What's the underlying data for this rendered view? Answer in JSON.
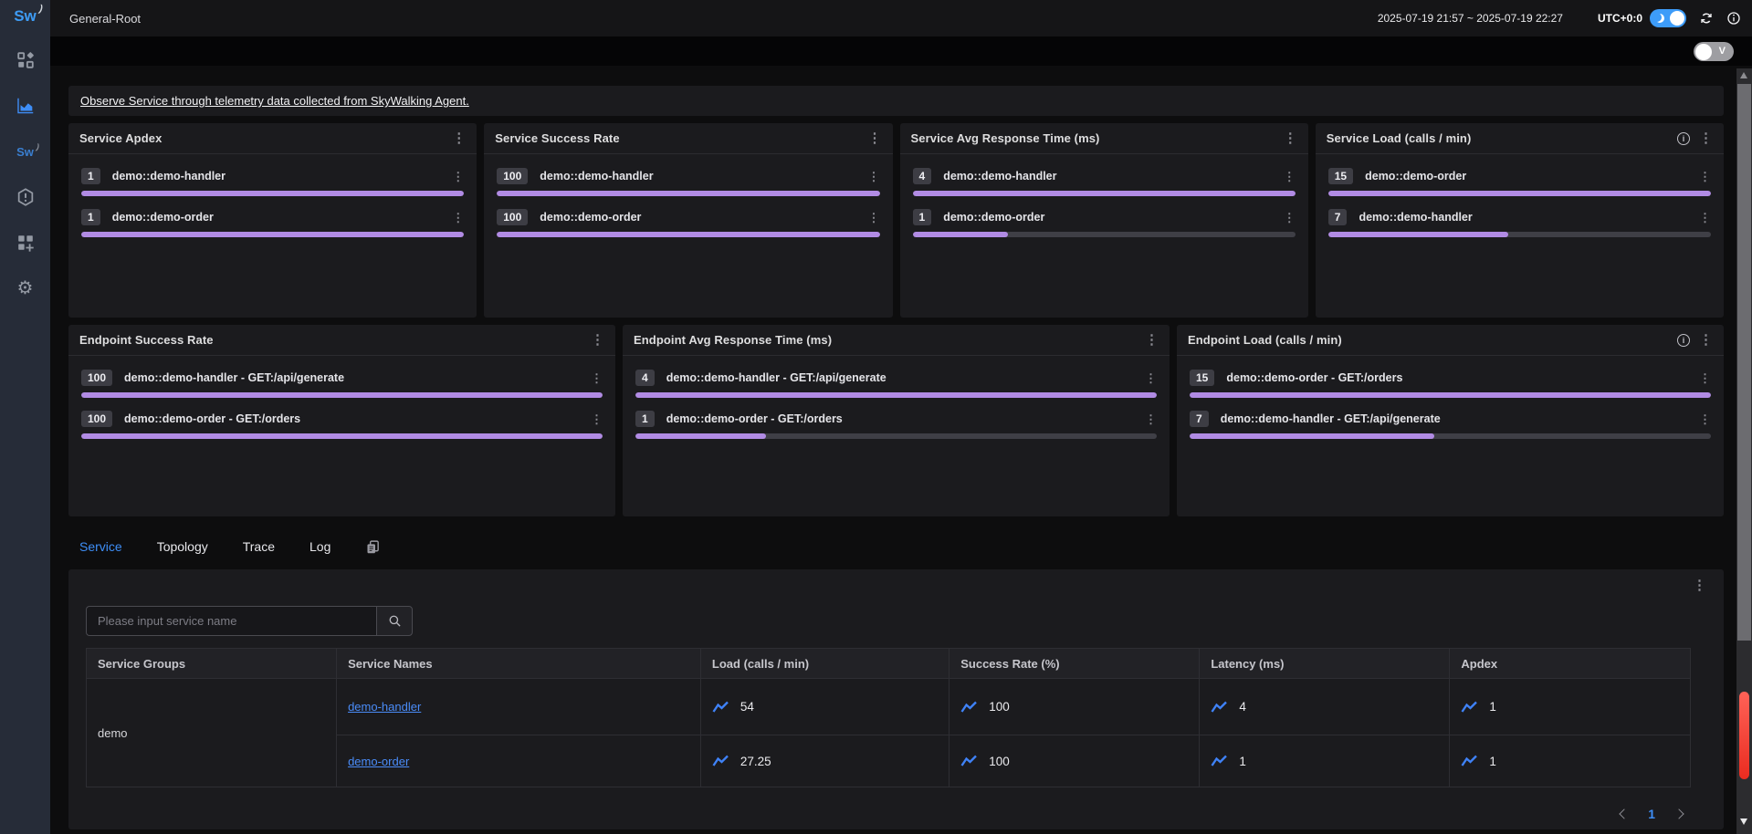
{
  "icons": {
    "kebab": "⋮",
    "gear": "⚙"
  },
  "sidebar": {
    "logo_text": "Sw",
    "logo_mini": "Sw"
  },
  "header": {
    "title": "General-Root",
    "time_range": "2025-07-19 21:57 ~ 2025-07-19 22:27",
    "timezone": "UTC+0:0",
    "mode_toggle_label": "V"
  },
  "banner_link": "Observe Service through telemetry data collected from SkyWalking Agent.",
  "cards_row1": [
    {
      "title": "Service Apdex",
      "rows": [
        {
          "value": "1",
          "label": "demo::demo-handler",
          "pct": 100
        },
        {
          "value": "1",
          "label": "demo::demo-order",
          "pct": 100
        }
      ]
    },
    {
      "title": "Service Success Rate",
      "rows": [
        {
          "value": "100",
          "label": "demo::demo-handler",
          "pct": 100
        },
        {
          "value": "100",
          "label": "demo::demo-order",
          "pct": 100
        }
      ]
    },
    {
      "title": "Service Avg Response Time (ms)",
      "rows": [
        {
          "value": "4",
          "label": "demo::demo-handler",
          "pct": 100
        },
        {
          "value": "1",
          "label": "demo::demo-order",
          "pct": 25
        }
      ]
    },
    {
      "title": "Service Load (calls / min)",
      "rows": [
        {
          "value": "15",
          "label": "demo::demo-order",
          "pct": 100
        },
        {
          "value": "7",
          "label": "demo::demo-handler",
          "pct": 47
        }
      ]
    }
  ],
  "cards_row2": [
    {
      "title": "Endpoint Success Rate",
      "rows": [
        {
          "value": "100",
          "label": "demo::demo-handler - GET:/api/generate",
          "pct": 100
        },
        {
          "value": "100",
          "label": "demo::demo-order - GET:/orders",
          "pct": 100
        }
      ]
    },
    {
      "title": "Endpoint Avg Response Time (ms)",
      "rows": [
        {
          "value": "4",
          "label": "demo::demo-handler - GET:/api/generate",
          "pct": 100
        },
        {
          "value": "1",
          "label": "demo::demo-order - GET:/orders",
          "pct": 25
        }
      ]
    },
    {
      "title": "Endpoint Load (calls / min)",
      "rows": [
        {
          "value": "15",
          "label": "demo::demo-order - GET:/orders",
          "pct": 100
        },
        {
          "value": "7",
          "label": "demo::demo-handler - GET:/api/generate",
          "pct": 47
        }
      ]
    }
  ],
  "tabs": [
    {
      "label": "Service"
    },
    {
      "label": "Topology"
    },
    {
      "label": "Trace"
    },
    {
      "label": "Log"
    }
  ],
  "service_panel": {
    "search_placeholder": "Please input service name"
  },
  "table": {
    "columns": [
      "Service Groups",
      "Service Names",
      "Load (calls / min)",
      "Success Rate (%)",
      "Latency (ms)",
      "Apdex"
    ],
    "group": "demo",
    "rows": [
      {
        "name": "demo-handler",
        "load": "54",
        "success_rate": "100",
        "latency": "4",
        "apdex": "1"
      },
      {
        "name": "demo-order",
        "load": "27.25",
        "success_rate": "100",
        "latency": "1",
        "apdex": "1"
      }
    ]
  },
  "pagination": {
    "current": "1"
  }
}
